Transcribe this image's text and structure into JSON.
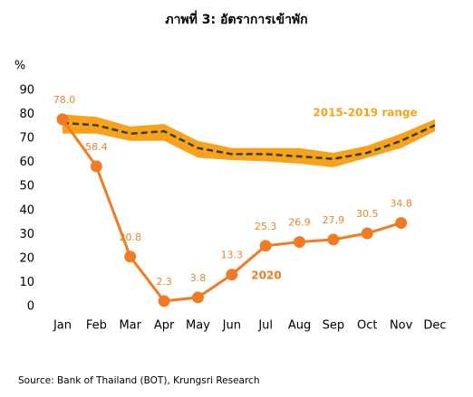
{
  "chart_data": {
    "type": "line",
    "title": "ภาพที่ 3: อัตราการเข้าพัก",
    "y_label": "%",
    "source": "Source: Bank of Thailand (BOT), Krungsri Research",
    "categories": [
      "Jan",
      "Feb",
      "Mar",
      "Apr",
      "May",
      "Jun",
      "Jul",
      "Aug",
      "Sep",
      "Oct",
      "Nov",
      "Dec"
    ],
    "series": [
      {
        "name": "2020",
        "color": "#f07b22",
        "values": [
          78.0,
          58.4,
          20.8,
          2.3,
          3.8,
          13.3,
          25.3,
          26.9,
          27.9,
          30.5,
          34.8,
          null
        ],
        "value_labels": [
          "78.0",
          "58.4",
          "20.8",
          "2.3",
          "3.8",
          "13.3",
          "25.3",
          "26.9",
          "27.9",
          "30.5",
          "34.8",
          null
        ]
      }
    ],
    "band": {
      "name": "2015-2019 range",
      "color": "#f7a21b",
      "upper": [
        80,
        79,
        75,
        76,
        69,
        66,
        66,
        66,
        64,
        67,
        72,
        78
      ],
      "lower": [
        72,
        72,
        69,
        69,
        62,
        61,
        60.5,
        59.5,
        58,
        62,
        66,
        73
      ]
    },
    "average": {
      "color": "#3a3a3a",
      "dashed": true,
      "values": [
        76.5,
        75.5,
        72,
        73,
        66,
        63.5,
        63.5,
        62.5,
        61.5,
        64,
        69,
        75.5
      ]
    },
    "ylim": [
      0,
      90
    ],
    "yticks": [
      0,
      10,
      20,
      30,
      40,
      50,
      60,
      70,
      80,
      90
    ],
    "grid": false
  }
}
